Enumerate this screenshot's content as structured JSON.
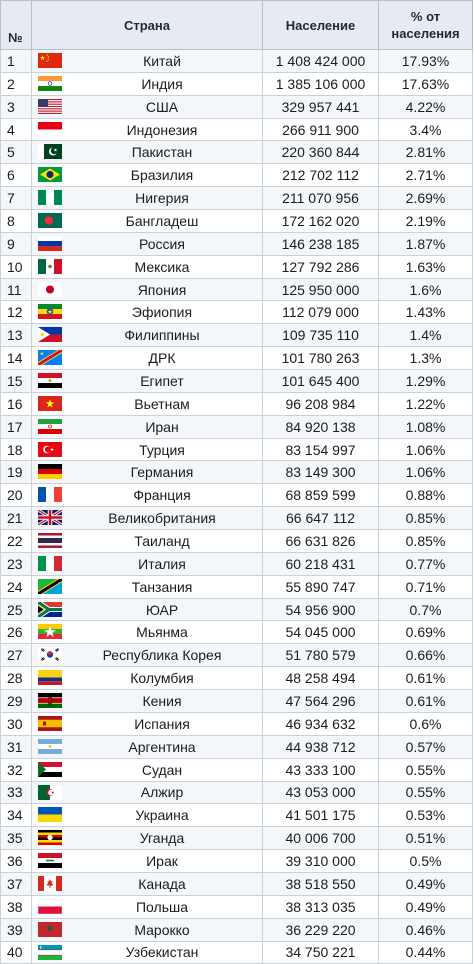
{
  "header": {
    "num": "№",
    "country": "Страна",
    "population": "Население",
    "percent_line1": "% от",
    "percent_line2": "населения"
  },
  "rows": [
    {
      "n": "1",
      "country": "Китай",
      "pop": "1 408 424 000",
      "pct": "17.93%",
      "flag": "flag-china-icon"
    },
    {
      "n": "2",
      "country": "Индия",
      "pop": "1 385 106 000",
      "pct": "17.63%",
      "flag": "flag-india-icon"
    },
    {
      "n": "3",
      "country": "США",
      "pop": "329 957 441",
      "pct": "4.22%",
      "flag": "flag-usa-icon"
    },
    {
      "n": "4",
      "country": "Индонезия",
      "pop": "266 911 900",
      "pct": "3.4%",
      "flag": "flag-indonesia-icon"
    },
    {
      "n": "5",
      "country": "Пакистан",
      "pop": "220 360 844",
      "pct": "2.81%",
      "flag": "flag-pakistan-icon"
    },
    {
      "n": "6",
      "country": "Бразилия",
      "pop": "212 702 112",
      "pct": "2.71%",
      "flag": "flag-brazil-icon"
    },
    {
      "n": "7",
      "country": "Нигерия",
      "pop": "211 070 956",
      "pct": "2.69%",
      "flag": "flag-nigeria-icon"
    },
    {
      "n": "8",
      "country": "Бангладеш",
      "pop": "172 162 020",
      "pct": "2.19%",
      "flag": "flag-bangladesh-icon"
    },
    {
      "n": "9",
      "country": "Россия",
      "pop": "146 238 185",
      "pct": "1.87%",
      "flag": "flag-russia-icon"
    },
    {
      "n": "10",
      "country": "Мексика",
      "pop": "127 792 286",
      "pct": "1.63%",
      "flag": "flag-mexico-icon"
    },
    {
      "n": "11",
      "country": "Япония",
      "pop": "125 950 000",
      "pct": "1.6%",
      "flag": "flag-japan-icon"
    },
    {
      "n": "12",
      "country": "Эфиопия",
      "pop": "112 079 000",
      "pct": "1.43%",
      "flag": "flag-ethiopia-icon"
    },
    {
      "n": "13",
      "country": "Филиппины",
      "pop": "109 735 110",
      "pct": "1.4%",
      "flag": "flag-philippines-icon"
    },
    {
      "n": "14",
      "country": "ДРК",
      "pop": "101 780 263",
      "pct": "1.3%",
      "flag": "flag-drc-icon"
    },
    {
      "n": "15",
      "country": "Египет",
      "pop": "101 645 400",
      "pct": "1.29%",
      "flag": "flag-egypt-icon"
    },
    {
      "n": "16",
      "country": "Вьетнам",
      "pop": "96 208 984",
      "pct": "1.22%",
      "flag": "flag-vietnam-icon"
    },
    {
      "n": "17",
      "country": "Иран",
      "pop": "84 920 138",
      "pct": "1.08%",
      "flag": "flag-iran-icon"
    },
    {
      "n": "18",
      "country": "Турция",
      "pop": "83 154 997",
      "pct": "1.06%",
      "flag": "flag-turkey-icon"
    },
    {
      "n": "19",
      "country": "Германия",
      "pop": "83 149 300",
      "pct": "1.06%",
      "flag": "flag-germany-icon"
    },
    {
      "n": "20",
      "country": "Франция",
      "pop": "68 859 599",
      "pct": "0.88%",
      "flag": "flag-france-icon"
    },
    {
      "n": "21",
      "country": "Великобритания",
      "pop": "66 647 112",
      "pct": "0.85%",
      "flag": "flag-uk-icon"
    },
    {
      "n": "22",
      "country": "Таиланд",
      "pop": "66 631 826",
      "pct": "0.85%",
      "flag": "flag-thailand-icon"
    },
    {
      "n": "23",
      "country": "Италия",
      "pop": "60 218 431",
      "pct": "0.77%",
      "flag": "flag-italy-icon"
    },
    {
      "n": "24",
      "country": "Танзания",
      "pop": "55 890 747",
      "pct": "0.71%",
      "flag": "flag-tanzania-icon"
    },
    {
      "n": "25",
      "country": "ЮАР",
      "pop": "54 956 900",
      "pct": "0.7%",
      "flag": "flag-south-africa-icon"
    },
    {
      "n": "26",
      "country": "Мьянма",
      "pop": "54 045 000",
      "pct": "0.69%",
      "flag": "flag-myanmar-icon"
    },
    {
      "n": "27",
      "country": "Республика Корея",
      "pop": "51 780 579",
      "pct": "0.66%",
      "flag": "flag-south-korea-icon"
    },
    {
      "n": "28",
      "country": "Колумбия",
      "pop": "48 258 494",
      "pct": "0.61%",
      "flag": "flag-colombia-icon"
    },
    {
      "n": "29",
      "country": "Кения",
      "pop": "47 564 296",
      "pct": "0.61%",
      "flag": "flag-kenya-icon"
    },
    {
      "n": "30",
      "country": "Испания",
      "pop": "46 934 632",
      "pct": "0.6%",
      "flag": "flag-spain-icon"
    },
    {
      "n": "31",
      "country": "Аргентина",
      "pop": "44 938 712",
      "pct": "0.57%",
      "flag": "flag-argentina-icon"
    },
    {
      "n": "32",
      "country": "Судан",
      "pop": "43 333 100",
      "pct": "0.55%",
      "flag": "flag-sudan-icon"
    },
    {
      "n": "33",
      "country": "Алжир",
      "pop": "43 053 000",
      "pct": "0.55%",
      "flag": "flag-algeria-icon"
    },
    {
      "n": "34",
      "country": "Украина",
      "pop": "41 501 175",
      "pct": "0.53%",
      "flag": "flag-ukraine-icon"
    },
    {
      "n": "35",
      "country": "Уганда",
      "pop": "40 006 700",
      "pct": "0.51%",
      "flag": "flag-uganda-icon"
    },
    {
      "n": "36",
      "country": "Ирак",
      "pop": "39 310 000",
      "pct": "0.5%",
      "flag": "flag-iraq-icon"
    },
    {
      "n": "37",
      "country": "Канада",
      "pop": "38 518 550",
      "pct": "0.49%",
      "flag": "flag-canada-icon"
    },
    {
      "n": "38",
      "country": "Польша",
      "pop": "38 313 035",
      "pct": "0.49%",
      "flag": "flag-poland-icon"
    },
    {
      "n": "39",
      "country": "Марокко",
      "pop": "36 229 220",
      "pct": "0.46%",
      "flag": "flag-morocco-icon"
    },
    {
      "n": "40",
      "country": "Узбекистан",
      "pop": "34 750 221",
      "pct": "0.44%",
      "flag": "flag-uzbekistan-icon"
    }
  ]
}
